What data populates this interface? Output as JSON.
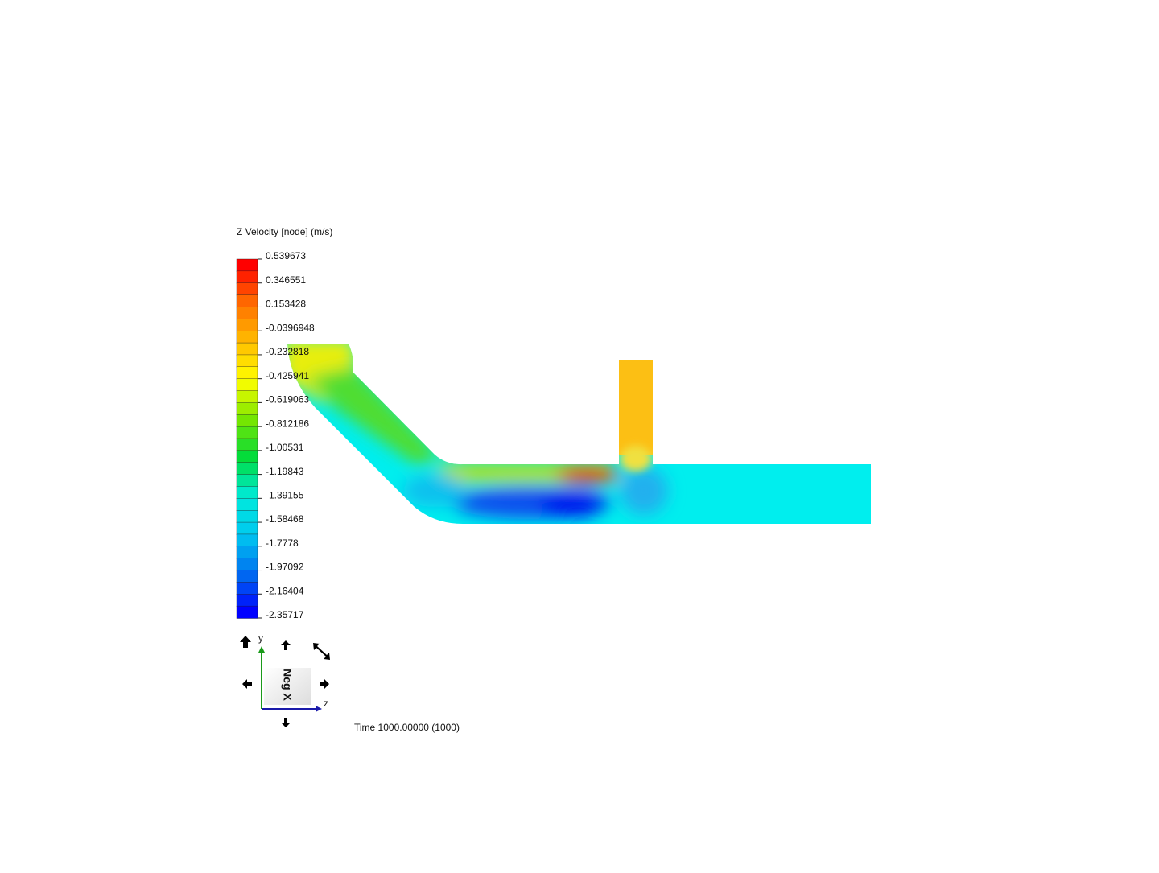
{
  "legend": {
    "title": "Z Velocity [node] (m/s)",
    "labels": [
      "0.539673",
      "0.346551",
      "0.153428",
      "-0.0396948",
      "-0.232818",
      "-0.425941",
      "-0.619063",
      "-0.812186",
      "-1.00531",
      "-1.19843",
      "-1.39155",
      "-1.58468",
      "-1.7778",
      "-1.97092",
      "-2.16404",
      "-2.35717"
    ]
  },
  "triad": {
    "y_label": "y",
    "z_label": "z",
    "view_label": "Neg X"
  },
  "time": "Time 1000.00000 (1000)"
}
